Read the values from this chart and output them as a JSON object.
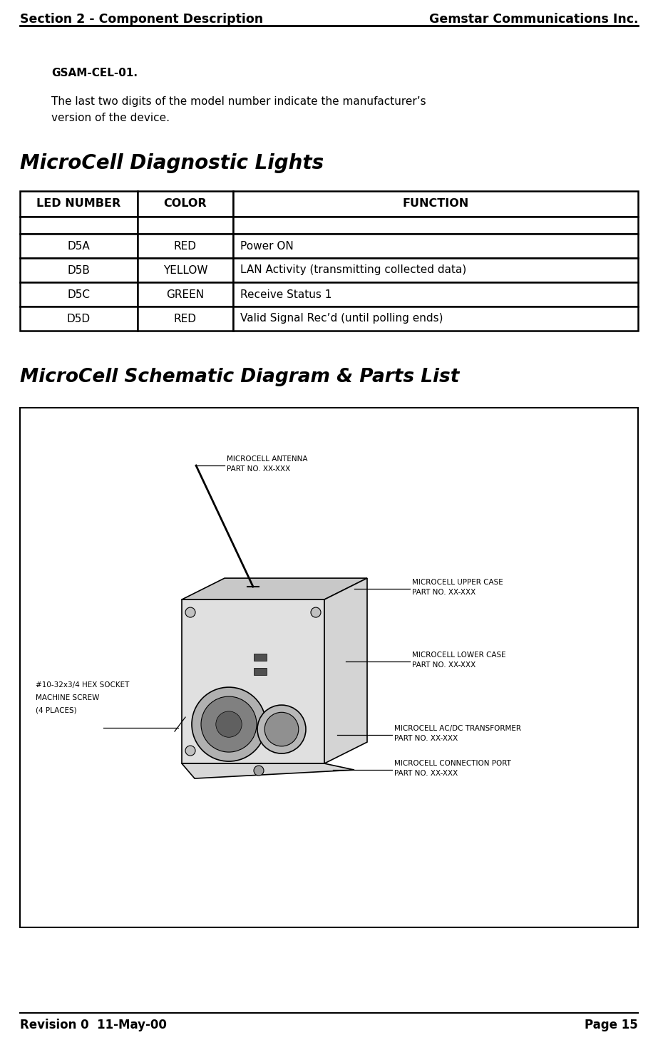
{
  "header_left": "Section 2 - Component Description",
  "header_right": "Gemstar Communications Inc.",
  "footer_left": "Revision 0  11-May-00",
  "footer_right": "Page 15",
  "bold_text": "GSAM-CEL-01",
  "body_text_line1": "The last two digits of the model number indicate the manufacturer’s",
  "body_text_line2": "version of the device.",
  "section2_title": "MicroCell Diagnostic Lights",
  "table_headers": [
    "LED NUMBER",
    "COLOR",
    "FUNCTION"
  ],
  "table_rows": [
    [
      "D5A",
      "RED",
      "Power ON"
    ],
    [
      "D5B",
      "YELLOW",
      "LAN Activity (transmitting collected data)"
    ],
    [
      "D5C",
      "GREEN",
      "Receive Status 1"
    ],
    [
      "D5D",
      "RED",
      "Valid Signal Rec’d (until polling ends)"
    ]
  ],
  "section3_title": "MicroCell Schematic Diagram & Parts List",
  "bg_color": "#ffffff"
}
